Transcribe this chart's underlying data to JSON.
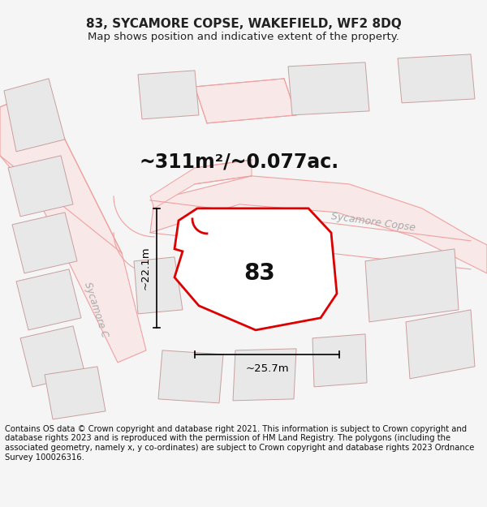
{
  "title_line1": "83, SYCAMORE COPSE, WAKEFIELD, WF2 8DQ",
  "title_line2": "Map shows position and indicative extent of the property.",
  "area_text": "~311m²/~0.077ac.",
  "number_label": "83",
  "road_label1": "Sycamore Copse",
  "road_label2": "Sycamore C",
  "dim_label_h": "~25.7m",
  "dim_label_v": "~22.1m",
  "footer_text": "Contains OS data © Crown copyright and database right 2021. This information is subject to Crown copyright and database rights 2023 and is reproduced with the permission of HM Land Registry. The polygons (including the associated geometry, namely x, y co-ordinates) are subject to Crown copyright and database rights 2023 Ordnance Survey 100026316.",
  "bg_color": "#f5f5f5",
  "map_bg_color": "#ffffff",
  "road_line_color": "#f0a0a0",
  "road_fill_color": "#f8e8e8",
  "property_edge_color": "#dd0000",
  "property_fill_color": "#ffffff",
  "building_edge_color": "#c8a0a0",
  "building_fill_color": "#e8e8e8",
  "road_area_fill": "#f5f5f5",
  "dim_color": "#111111",
  "label_color": "#bbbbbb",
  "title_fontsize": 11,
  "subtitle_fontsize": 9.5,
  "area_fontsize": 17,
  "number_fontsize": 20,
  "road_fontsize": 9,
  "dim_fontsize": 9.5,
  "footer_fontsize": 7.2
}
